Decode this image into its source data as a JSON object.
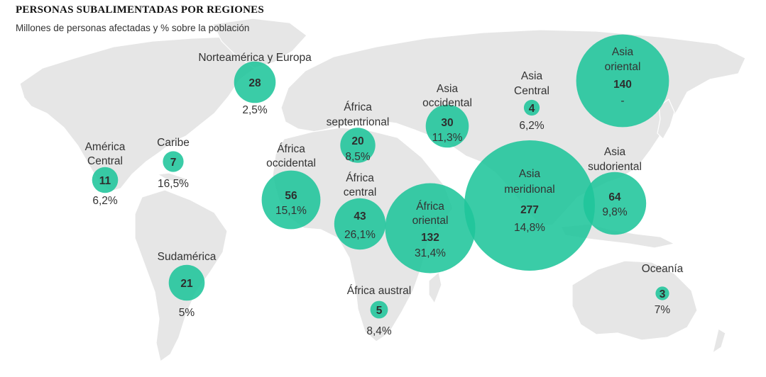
{
  "header": {
    "title": "PERSONAS SUBALIMENTADAS POR REGIONES",
    "subtitle": "Millones de personas afectadas y % sobre la población"
  },
  "colors": {
    "bubble": "#1fc59b",
    "map_land": "#e6e6e6",
    "value_text": "#2e2e2e",
    "label_text": "#333333"
  },
  "chart_data": {
    "type": "bubble-map",
    "title": "PERSONAS SUBALIMENTADAS POR REGIONES",
    "subtitle": "Millones de personas afectadas y % sobre la población",
    "size_encodes": "millions",
    "regions": [
      {
        "id": "norteamerica-europa",
        "name": [
          "Norteamérica y Europa"
        ],
        "millions": 28,
        "value_label": "28",
        "pct_label": "2,5%"
      },
      {
        "id": "america-central",
        "name": [
          "América",
          "Central"
        ],
        "millions": 11,
        "value_label": "11",
        "pct_label": "6,2%"
      },
      {
        "id": "caribe",
        "name": [
          "Caribe"
        ],
        "millions": 7,
        "value_label": "7",
        "pct_label": "16,5%"
      },
      {
        "id": "sudamerica",
        "name": [
          "Sudamérica"
        ],
        "millions": 21,
        "value_label": "21",
        "pct_label": "5%"
      },
      {
        "id": "africa-septentrional",
        "name": [
          "África",
          "septentrional"
        ],
        "millions": 20,
        "value_label": "20",
        "pct_label": "8,5%"
      },
      {
        "id": "africa-occidental",
        "name": [
          "África",
          "occidental"
        ],
        "millions": 56,
        "value_label": "56",
        "pct_label": "15,1%"
      },
      {
        "id": "africa-central",
        "name": [
          "África",
          "central"
        ],
        "millions": 43,
        "value_label": "43",
        "pct_label": "26,1%"
      },
      {
        "id": "africa-oriental",
        "name": [
          "África",
          "oriental"
        ],
        "millions": 132,
        "value_label": "132",
        "pct_label": "31,4%"
      },
      {
        "id": "africa-austral",
        "name": [
          "África austral"
        ],
        "millions": 5,
        "value_label": "5",
        "pct_label": "8,4%"
      },
      {
        "id": "asia-occidental",
        "name": [
          "Asia",
          "occidental"
        ],
        "millions": 30,
        "value_label": "30",
        "pct_label": "11,3%"
      },
      {
        "id": "asia-central",
        "name": [
          "Asia",
          "Central"
        ],
        "millions": 4,
        "value_label": "4",
        "pct_label": "6,2%"
      },
      {
        "id": "asia-oriental",
        "name": [
          "Asia",
          "oriental"
        ],
        "millions": 140,
        "value_label": "140",
        "pct_label": "-"
      },
      {
        "id": "asia-meridional",
        "name": [
          "Asia",
          "meridional"
        ],
        "millions": 277,
        "value_label": "277",
        "pct_label": "14,8%"
      },
      {
        "id": "asia-sudoriental",
        "name": [
          "Asia",
          "sudoriental"
        ],
        "millions": 64,
        "value_label": "64",
        "pct_label": "9,8%"
      },
      {
        "id": "oceania",
        "name": [
          "Oceanía"
        ],
        "millions": 3,
        "value_label": "3",
        "pct_label": "7%"
      }
    ]
  }
}
